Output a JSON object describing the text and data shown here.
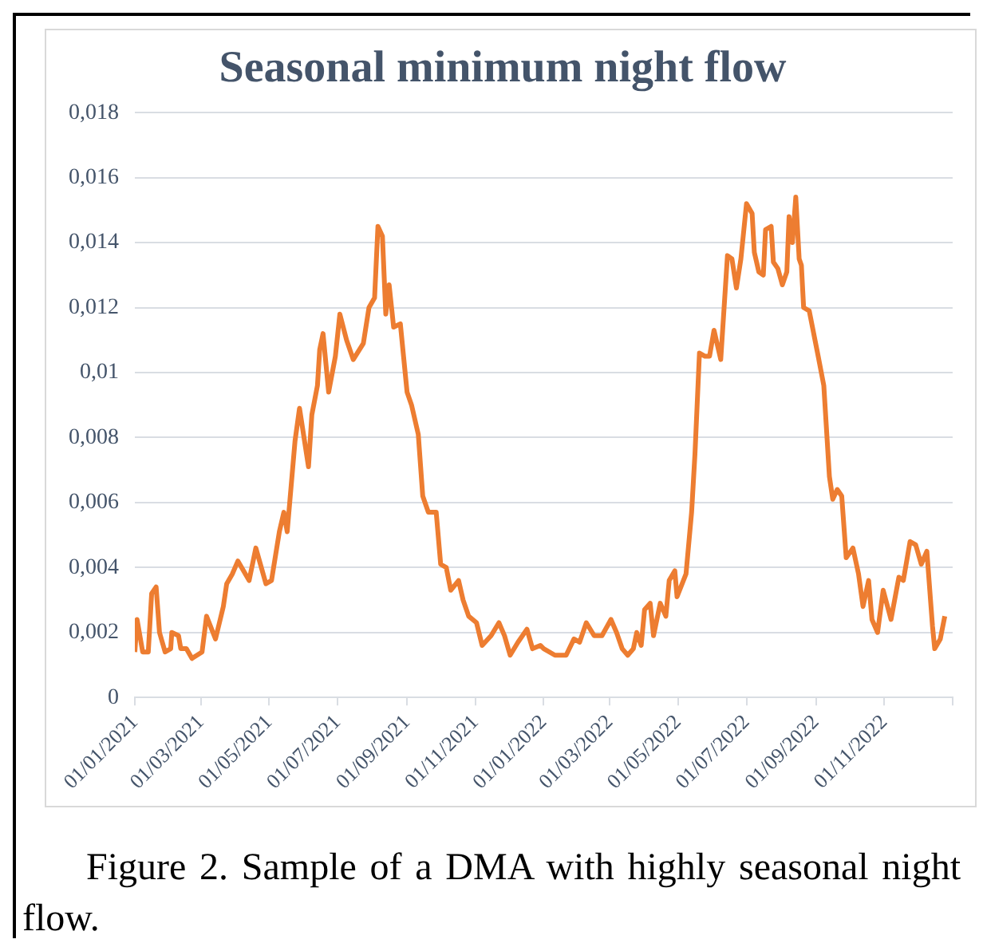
{
  "chart_data": {
    "type": "line",
    "title": "Seasonal minimum night flow",
    "annotations": [
      "Figure 2. Sample of a DMA with highly seasonal night flow."
    ],
    "x": [
      "2021-01-01",
      "2021-01-03",
      "2021-01-08",
      "2021-01-13",
      "2021-01-16",
      "2021-01-20",
      "2021-01-23",
      "2021-01-28",
      "2021-02-02",
      "2021-02-03",
      "2021-02-09",
      "2021-02-11",
      "2021-02-16",
      "2021-02-21",
      "2021-03-02",
      "2021-03-06",
      "2021-03-14",
      "2021-03-21",
      "2021-03-24",
      "2021-03-29",
      "2021-04-03",
      "2021-04-13",
      "2021-04-19",
      "2021-04-28",
      "2021-05-03",
      "2021-05-10",
      "2021-05-14",
      "2021-05-17",
      "2021-05-24",
      "2021-05-28",
      "2021-06-05",
      "2021-06-08",
      "2021-06-13",
      "2021-06-15",
      "2021-06-18",
      "2021-06-23",
      "2021-06-29",
      "2021-07-03",
      "2021-07-09",
      "2021-07-15",
      "2021-07-24",
      "2021-07-29",
      "2021-08-03",
      "2021-08-06",
      "2021-08-10",
      "2021-08-13",
      "2021-08-16",
      "2021-08-20",
      "2021-08-26",
      "2021-09-01",
      "2021-09-05",
      "2021-09-11",
      "2021-09-15",
      "2021-09-20",
      "2021-09-27",
      "2021-10-01",
      "2021-10-06",
      "2021-10-10",
      "2021-10-17",
      "2021-10-21",
      "2021-10-26",
      "2021-11-02",
      "2021-11-07",
      "2021-11-15",
      "2021-11-22",
      "2021-11-27",
      "2021-12-02",
      "2021-12-09",
      "2021-12-17",
      "2021-12-22",
      "2021-12-29",
      "2022-01-01",
      "2022-01-11",
      "2022-01-21",
      "2022-01-28",
      "2022-02-02",
      "2022-02-08",
      "2022-02-15",
      "2022-02-22",
      "2022-03-02",
      "2022-03-07",
      "2022-03-12",
      "2022-03-17",
      "2022-03-22",
      "2022-03-25",
      "2022-03-29",
      "2022-04-01",
      "2022-04-06",
      "2022-04-09",
      "2022-04-15",
      "2022-04-20",
      "2022-04-23",
      "2022-04-28",
      "2022-04-30",
      "2022-05-08",
      "2022-05-13",
      "2022-05-16",
      "2022-05-20",
      "2022-05-25",
      "2022-05-29",
      "2022-06-02",
      "2022-06-08",
      "2022-06-14",
      "2022-06-18",
      "2022-06-22",
      "2022-06-26",
      "2022-07-01",
      "2022-07-06",
      "2022-07-08",
      "2022-07-12",
      "2022-07-16",
      "2022-07-18",
      "2022-07-23",
      "2022-07-25",
      "2022-07-29",
      "2022-08-02",
      "2022-08-06",
      "2022-08-08",
      "2022-08-11",
      "2022-08-14",
      "2022-08-17",
      "2022-08-19",
      "2022-08-21",
      "2022-08-26",
      "2022-09-03",
      "2022-09-08",
      "2022-09-13",
      "2022-09-16",
      "2022-09-20",
      "2022-09-24",
      "2022-09-28",
      "2022-10-04",
      "2022-10-09",
      "2022-10-13",
      "2022-10-18",
      "2022-10-21",
      "2022-10-26",
      "2022-10-31",
      "2022-11-07",
      "2022-11-14",
      "2022-11-18",
      "2022-11-24",
      "2022-11-29",
      "2022-12-04",
      "2022-12-09",
      "2022-12-14",
      "2022-12-16",
      "2022-12-21",
      "2022-12-25"
    ],
    "series": [
      {
        "color": "#ed7d31",
        "values": [
          0.0014,
          0.0024,
          0.0014,
          0.0014,
          0.0032,
          0.0034,
          0.002,
          0.0014,
          0.0015,
          0.002,
          0.0019,
          0.0015,
          0.0015,
          0.0012,
          0.0014,
          0.0025,
          0.0018,
          0.0028,
          0.0035,
          0.0038,
          0.0042,
          0.0036,
          0.0046,
          0.0035,
          0.0036,
          0.0051,
          0.0057,
          0.0051,
          0.0079,
          0.0089,
          0.0071,
          0.0087,
          0.0096,
          0.0107,
          0.0112,
          0.0094,
          0.0105,
          0.0118,
          0.011,
          0.0104,
          0.0109,
          0.012,
          0.0123,
          0.0145,
          0.0142,
          0.0118,
          0.0127,
          0.0114,
          0.0115,
          0.0094,
          0.009,
          0.0081,
          0.0062,
          0.0057,
          0.0057,
          0.0041,
          0.004,
          0.0033,
          0.0036,
          0.003,
          0.0025,
          0.0023,
          0.0016,
          0.0019,
          0.0023,
          0.0019,
          0.0013,
          0.0017,
          0.0021,
          0.0015,
          0.0016,
          0.0015,
          0.0013,
          0.0013,
          0.0018,
          0.0017,
          0.0023,
          0.0019,
          0.0019,
          0.0024,
          0.002,
          0.0015,
          0.0013,
          0.0015,
          0.002,
          0.0016,
          0.0027,
          0.0029,
          0.0019,
          0.0029,
          0.0025,
          0.0036,
          0.0039,
          0.0031,
          0.0038,
          0.0057,
          0.0075,
          0.0106,
          0.0105,
          0.0105,
          0.0113,
          0.0104,
          0.0136,
          0.0135,
          0.0126,
          0.0135,
          0.0152,
          0.0149,
          0.0137,
          0.0131,
          0.013,
          0.0144,
          0.0145,
          0.0134,
          0.0132,
          0.0127,
          0.0131,
          0.0148,
          0.014,
          0.0154,
          0.0135,
          0.0133,
          0.012,
          0.0119,
          0.0105,
          0.0096,
          0.0068,
          0.0061,
          0.0064,
          0.0062,
          0.0043,
          0.0046,
          0.0038,
          0.0028,
          0.0036,
          0.0024,
          0.002,
          0.0033,
          0.0024,
          0.0037,
          0.0036,
          0.0048,
          0.0047,
          0.0041,
          0.0045,
          0.0022,
          0.0015,
          0.0018,
          0.0025
        ]
      }
    ],
    "xlim": [
      "2021-01-01",
      "2023-01-01"
    ],
    "xticks": [
      {
        "value": "2021-01-01",
        "label": "01/01/2021"
      },
      {
        "value": "2021-03-01",
        "label": "01/03/2021"
      },
      {
        "value": "2021-05-01",
        "label": "01/05/2021"
      },
      {
        "value": "2021-07-01",
        "label": "01/07/2021"
      },
      {
        "value": "2021-09-01",
        "label": "01/09/2021"
      },
      {
        "value": "2021-11-01",
        "label": "01/11/2021"
      },
      {
        "value": "2022-01-01",
        "label": "01/01/2022"
      },
      {
        "value": "2022-03-01",
        "label": "01/03/2022"
      },
      {
        "value": "2022-05-01",
        "label": "01/05/2022"
      },
      {
        "value": "2022-07-01",
        "label": "01/07/2022"
      },
      {
        "value": "2022-09-01",
        "label": "01/09/2022"
      },
      {
        "value": "2022-11-01",
        "label": "01/11/2022"
      },
      {
        "value": "2023-01-01",
        "label": null
      }
    ],
    "ylim": [
      0,
      0.018
    ],
    "yticks": [
      0,
      {
        "value": 0.002,
        "label": "0,002"
      },
      {
        "value": 0.004,
        "label": "0,004"
      },
      {
        "value": 0.006,
        "label": "0,006"
      },
      {
        "value": 0.008,
        "label": "0,008"
      },
      {
        "value": 0.01,
        "label": "0,01"
      },
      {
        "value": 0.012,
        "label": "0,012"
      },
      {
        "value": 0.014,
        "label": "0,014"
      },
      {
        "value": 0.016,
        "label": "0,016"
      },
      {
        "value": 0.018,
        "label": "0,018"
      }
    ],
    "grid": "y",
    "legend": false,
    "marker": "none",
    "line_style": "solid"
  }
}
